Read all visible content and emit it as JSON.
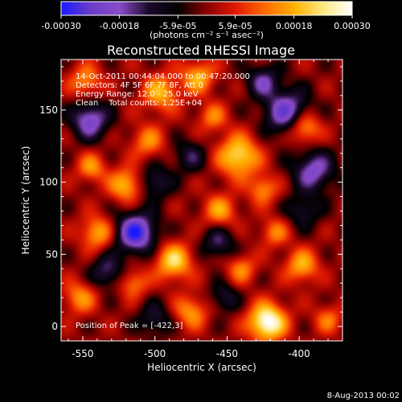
{
  "chart_data": {
    "type": "heatmap",
    "title": "Reconstructed RHESSI Image",
    "xlabel": "Heliocentric X (arcsec)",
    "ylabel": "Heliocentric Y (arcsec)",
    "xlim": [
      -565,
      -370
    ],
    "ylim": [
      -10,
      185
    ],
    "x_ticks": [
      -550,
      -500,
      -450,
      -400
    ],
    "y_ticks": [
      0,
      50,
      100,
      150
    ],
    "x_tick_labels": [
      "-550",
      "-500",
      "-450",
      "-400"
    ],
    "y_tick_labels": [
      "0",
      "50",
      "100",
      "150"
    ],
    "colorbar": {
      "range": [
        -0.0003,
        0.0003
      ],
      "ticks": [
        -0.0003,
        -0.00018,
        -5.9e-05,
        5.9e-05,
        0.00018,
        0.0003
      ],
      "tick_labels": [
        "-0.00030",
        "-0.00018",
        "-5.9e-05",
        "5.9e-05",
        "0.00018",
        "0.00030"
      ],
      "units_label": "(photons cm⁻² s⁻¹ asec⁻²)",
      "colors": [
        "#1a1aff",
        "#6a3cc8",
        "#8a4cc8",
        "#1c0a2c",
        "#000000",
        "#8a0000",
        "#e01a00",
        "#ff6a00",
        "#ffb000",
        "#ffe880",
        "#ffffff"
      ]
    },
    "annotations": [
      "14-Oct-2011 00:44:04.000 to 00:47:20.000",
      "Detectors: 4F 5F 6F 7F 8F, Att 0",
      "Energy Range: 12.0 - 25.0 keV",
      "Clean    Total counts: 1.25E+04"
    ],
    "peak_label": "Position of Peak = [-422,3]",
    "peak_position": [
      -422,
      3
    ],
    "sources": [
      {
        "x": -422,
        "y": 3,
        "amp": 0.00032,
        "sigma": 9
      },
      {
        "x": -442,
        "y": 118,
        "amp": 0.00024,
        "sigma": 10
      },
      {
        "x": -496,
        "y": 162,
        "amp": 0.00018,
        "sigma": 9
      },
      {
        "x": -470,
        "y": 173,
        "amp": 0.00018,
        "sigma": 8
      },
      {
        "x": -520,
        "y": 98,
        "amp": 0.0002,
        "sigma": 8
      },
      {
        "x": -548,
        "y": 170,
        "amp": 0.00015,
        "sigma": 8
      },
      {
        "x": -544,
        "y": 110,
        "amp": 0.00015,
        "sigma": 7
      },
      {
        "x": -397,
        "y": 138,
        "amp": 0.00022,
        "sigma": 8
      },
      {
        "x": -398,
        "y": 42,
        "amp": 0.00018,
        "sigma": 8
      },
      {
        "x": -487,
        "y": 45,
        "amp": 0.00022,
        "sigma": 9
      },
      {
        "x": -455,
        "y": 80,
        "amp": 0.00016,
        "sigma": 8
      },
      {
        "x": -540,
        "y": 65,
        "amp": 0.00018,
        "sigma": 8
      },
      {
        "x": -552,
        "y": 20,
        "amp": 0.00015,
        "sigma": 8
      },
      {
        "x": -475,
        "y": 10,
        "amp": 0.00016,
        "sigma": 8
      },
      {
        "x": -440,
        "y": 40,
        "amp": 0.00014,
        "sigma": 7
      },
      {
        "x": -425,
        "y": 95,
        "amp": 0.00015,
        "sigma": 7
      },
      {
        "x": -505,
        "y": 128,
        "amp": 0.00014,
        "sigma": 8
      },
      {
        "x": -460,
        "y": 145,
        "amp": 0.00013,
        "sigma": 7
      },
      {
        "x": -417,
        "y": 65,
        "amp": 0.00013,
        "sigma": 7
      },
      {
        "x": -380,
        "y": 5,
        "amp": 0.00012,
        "sigma": 7
      },
      {
        "x": -515,
        "y": 30,
        "amp": 0.00014,
        "sigma": 7
      },
      {
        "x": -513,
        "y": 65,
        "amp": -0.00028,
        "sigma": 10
      },
      {
        "x": -545,
        "y": 143,
        "amp": -0.00022,
        "sigma": 9
      },
      {
        "x": -408,
        "y": 148,
        "amp": -0.00024,
        "sigma": 11
      },
      {
        "x": -390,
        "y": 108,
        "amp": -0.0002,
        "sigma": 10
      },
      {
        "x": -500,
        "y": 100,
        "amp": -0.00014,
        "sigma": 8
      },
      {
        "x": -456,
        "y": 58,
        "amp": -0.00014,
        "sigma": 8
      },
      {
        "x": -533,
        "y": 38,
        "amp": -0.00015,
        "sigma": 8
      },
      {
        "x": -476,
        "y": 118,
        "amp": -0.00012,
        "sigma": 8
      },
      {
        "x": -425,
        "y": 170,
        "amp": -0.00016,
        "sigma": 8
      },
      {
        "x": -452,
        "y": 20,
        "amp": -0.00012,
        "sigma": 7
      },
      {
        "x": -397,
        "y": 80,
        "amp": -0.00012,
        "sigma": 8
      },
      {
        "x": -500,
        "y": 5,
        "amp": -0.00012,
        "sigma": 8
      }
    ]
  },
  "footer": {
    "date": "8-Aug-2013 00:02"
  }
}
